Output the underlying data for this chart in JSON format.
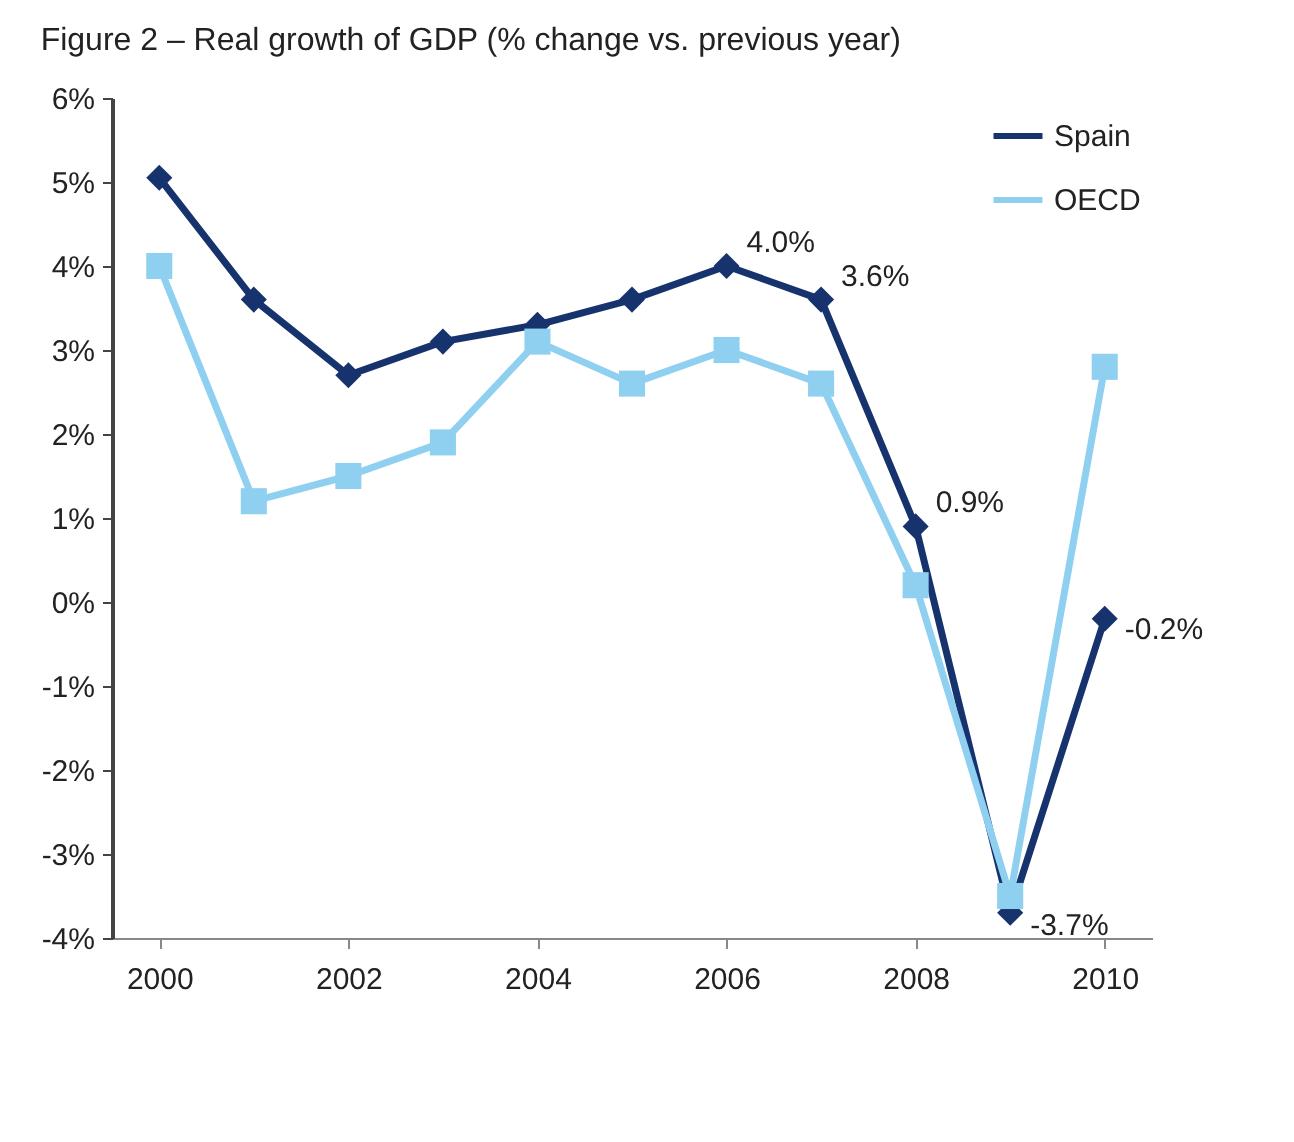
{
  "chart_data": {
    "type": "line",
    "title": "Figure 2 – Real growth of GDP (% change vs. previous year)",
    "x": [
      2000,
      2001,
      2002,
      2003,
      2004,
      2005,
      2006,
      2007,
      2008,
      2009,
      2010
    ],
    "series": [
      {
        "name": "Spain",
        "color": "#17336e",
        "marker": "diamond",
        "values": [
          5.05,
          3.6,
          2.7,
          3.1,
          3.3,
          3.6,
          4.0,
          3.6,
          0.9,
          -3.7,
          -0.2
        ],
        "value_labels": [
          null,
          null,
          null,
          null,
          null,
          null,
          "4.0%",
          "3.6%",
          "0.9%",
          "-3.7%",
          "-0.2%"
        ]
      },
      {
        "name": "OECD",
        "color": "#8fd0f0",
        "marker": "square",
        "values": [
          4.0,
          1.2,
          1.5,
          1.9,
          3.1,
          2.6,
          3.0,
          2.6,
          0.2,
          -3.5,
          2.8
        ]
      }
    ],
    "xlim": [
      1999.5,
      2010.5
    ],
    "xticks": [
      2000,
      2002,
      2004,
      2006,
      2008,
      2010
    ],
    "ylim": [
      -4,
      6
    ],
    "yticks": [
      {
        "value": -4,
        "label": "-4%"
      },
      {
        "value": -3,
        "label": "-3%"
      },
      {
        "value": -2,
        "label": "-2%"
      },
      {
        "value": -1,
        "label": "-1%"
      },
      {
        "value": 0,
        "label": "0%"
      },
      {
        "value": 1,
        "label": "1%"
      },
      {
        "value": 2,
        "label": "2%"
      },
      {
        "value": 3,
        "label": "3%"
      },
      {
        "value": 4,
        "label": "4%"
      },
      {
        "value": 5,
        "label": "5%"
      },
      {
        "value": 6,
        "label": "6%"
      }
    ],
    "grid": false,
    "legend": "top right",
    "line_style": "solid"
  }
}
